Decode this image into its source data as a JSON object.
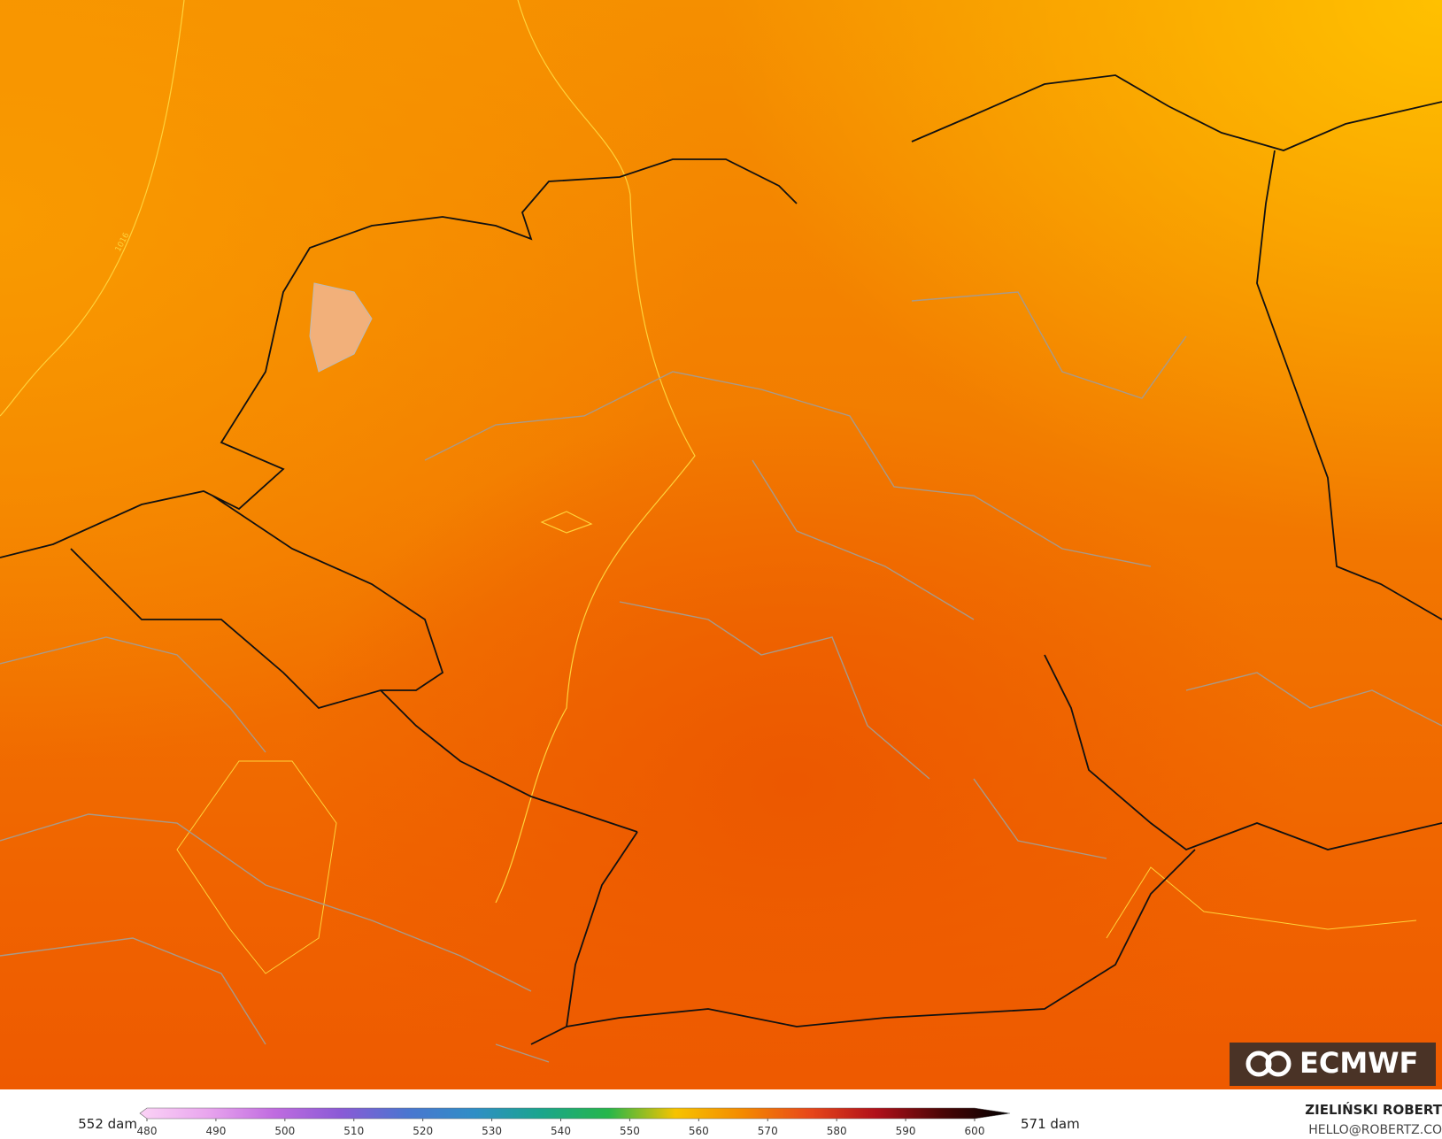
{
  "map": {
    "contour_label": "1016",
    "logo": "ECMWF"
  },
  "colorbar": {
    "type": "colorbar",
    "min_label": "552 dam",
    "max_label": "571 dam",
    "range": [
      480,
      600
    ],
    "ticks": [
      480,
      490,
      500,
      510,
      520,
      530,
      540,
      550,
      560,
      570,
      580,
      590,
      600
    ],
    "colors": [
      "#fbd3f6",
      "#e9a6ee",
      "#c06ce0",
      "#8a5ad6",
      "#4a76d0",
      "#2f8ec6",
      "#1aa58c",
      "#26b64a",
      "#f6c300",
      "#f48a00",
      "#e8481a",
      "#b0101a",
      "#4a0606",
      "#000000"
    ]
  },
  "credits": {
    "author": "ZIELIŃSKI ROBERT",
    "contact": "HELLO@ROBERTZ.CO"
  }
}
